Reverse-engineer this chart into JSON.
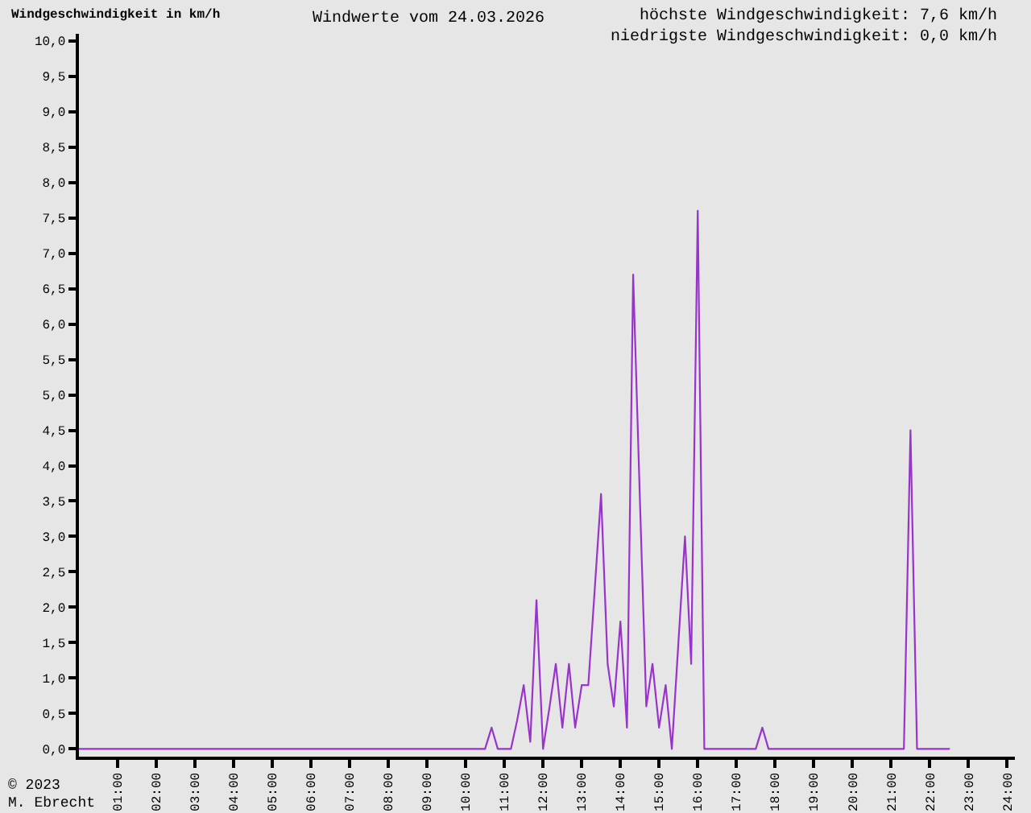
{
  "chart_data": {
    "type": "line",
    "title": "Windwerte vom 24.03.2026",
    "ylabel": "Windgeschwindigkeit in km/h",
    "annotations": [
      "höchste Windgeschwindigkeit: 7,6 km/h",
      "niedrigste Windgeschwindigkeit: 0,0 km/h",
      "© 2023",
      "M. Ebrecht"
    ],
    "x": [
      0,
      10.5,
      10.67,
      10.83,
      11.17,
      11.33,
      11.5,
      11.67,
      11.83,
      12,
      12.17,
      12.33,
      12.5,
      12.67,
      12.83,
      13,
      13.17,
      13.33,
      13.5,
      13.67,
      13.83,
      14,
      14.17,
      14.33,
      14.5,
      14.67,
      14.83,
      15,
      15.17,
      15.33,
      15.5,
      15.67,
      15.83,
      16,
      16.17,
      17.5,
      17.67,
      17.83,
      21.33,
      21.5,
      21.67,
      22.5
    ],
    "values": [
      0,
      0,
      0.3,
      0,
      0,
      0.4,
      0.9,
      0.1,
      2.1,
      0,
      0.6,
      1.2,
      0.3,
      1.2,
      0.3,
      0.9,
      0.9,
      2.2,
      3.6,
      1.2,
      0.6,
      1.8,
      0.3,
      6.7,
      3.6,
      0.6,
      1.2,
      0.3,
      0.9,
      0,
      1.5,
      3.0,
      1.2,
      7.6,
      0,
      0,
      0.3,
      0,
      0,
      4.5,
      0,
      0
    ],
    "color": "#9933cc",
    "line_style": "solid",
    "xlim": [
      0,
      24.2
    ],
    "ylim": [
      -0.11,
      10.1
    ],
    "xticks": [
      {
        "value": 1,
        "label": "01:00"
      },
      {
        "value": 2,
        "label": "02:00"
      },
      {
        "value": 3,
        "label": "03:00"
      },
      {
        "value": 4,
        "label": "04:00"
      },
      {
        "value": 5,
        "label": "05:00"
      },
      {
        "value": 6,
        "label": "06:00"
      },
      {
        "value": 7,
        "label": "07:00"
      },
      {
        "value": 8,
        "label": "08:00"
      },
      {
        "value": 9,
        "label": "09:00"
      },
      {
        "value": 10,
        "label": "10:00"
      },
      {
        "value": 11,
        "label": "11:00"
      },
      {
        "value": 12,
        "label": "12:00"
      },
      {
        "value": 13,
        "label": "13:00"
      },
      {
        "value": 14,
        "label": "14:00"
      },
      {
        "value": 15,
        "label": "15:00"
      },
      {
        "value": 16,
        "label": "16:00"
      },
      {
        "value": 17,
        "label": "17:00"
      },
      {
        "value": 18,
        "label": "18:00"
      },
      {
        "value": 19,
        "label": "19:00"
      },
      {
        "value": 20,
        "label": "20:00"
      },
      {
        "value": 21,
        "label": "21:00"
      },
      {
        "value": 22,
        "label": "22:00"
      },
      {
        "value": 23,
        "label": "23:00"
      },
      {
        "value": 24,
        "label": "24:00"
      }
    ],
    "yticks": [
      {
        "value": 0,
        "label": "0,0"
      },
      {
        "value": 0.5,
        "label": "0,5"
      },
      {
        "value": 1,
        "label": "1,0"
      },
      {
        "value": 1.5,
        "label": "1,5"
      },
      {
        "value": 2,
        "label": "2,0"
      },
      {
        "value": 2.5,
        "label": "2,5"
      },
      {
        "value": 3,
        "label": "3,0"
      },
      {
        "value": 3.5,
        "label": "3,5"
      },
      {
        "value": 4,
        "label": "4,0"
      },
      {
        "value": 4.5,
        "label": "4,5"
      },
      {
        "value": 5,
        "label": "5,0"
      },
      {
        "value": 5.5,
        "label": "5,5"
      },
      {
        "value": 6,
        "label": "6,0"
      },
      {
        "value": 6.5,
        "label": "6,5"
      },
      {
        "value": 7,
        "label": "7,0"
      },
      {
        "value": 7.5,
        "label": "7,5"
      },
      {
        "value": 8,
        "label": "8,0"
      },
      {
        "value": 8.5,
        "label": "8,5"
      },
      {
        "value": 9,
        "label": "9,0"
      },
      {
        "value": 9.5,
        "label": "9,5"
      },
      {
        "value": 10,
        "label": "10,0"
      }
    ]
  }
}
